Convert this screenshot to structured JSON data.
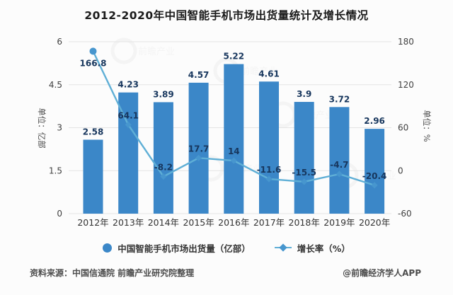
{
  "title": "2012-2020年中国智能手机市场出货量统计及增长情况",
  "chart_data": {
    "type": "bar",
    "subtype": "bar-line-combo",
    "categories": [
      "2012年",
      "2013年",
      "2014年",
      "2015年",
      "2016年",
      "2017年",
      "2018年",
      "2019年",
      "2020年"
    ],
    "series": [
      {
        "name": "中国智能手机市场出货量（亿部）",
        "type": "bar",
        "axis": "left",
        "values": [
          2.58,
          4.23,
          3.89,
          4.57,
          5.22,
          4.61,
          3.9,
          3.72,
          2.96
        ],
        "labels": [
          "2.58",
          "4.23",
          "3.89",
          "4.57",
          "5.22",
          "4.61",
          "3.9",
          "3.72",
          "2.96"
        ]
      },
      {
        "name": "增长率（%）",
        "type": "line",
        "axis": "right",
        "values": [
          166.8,
          64.1,
          -8.2,
          17.7,
          14,
          -11.6,
          -15.5,
          -4.7,
          -20.4
        ],
        "labels": [
          "166.8",
          "64.1",
          "-8.2",
          "17.7",
          "14",
          "-11.6",
          "-15.5",
          "-4.7",
          "-20.4"
        ]
      }
    ],
    "left_axis": {
      "title": "单位：亿部",
      "ticks": [
        6,
        4.5,
        3,
        1.5,
        0
      ],
      "range": [
        0,
        6
      ]
    },
    "right_axis": {
      "title": "单位：%",
      "ticks": [
        180,
        120,
        60,
        0,
        -60
      ],
      "range": [
        -60,
        180
      ]
    },
    "grid": true,
    "legend_position": "bottom"
  },
  "legend": {
    "bar_label": "中国智能手机市场出货量（亿部）",
    "line_label": "增长率（%）"
  },
  "footer": {
    "source": "资料来源：中国信通院 前瞻产业研究院整理",
    "credit": "@前瞻经济学人APP"
  },
  "watermark_text": "前瞻产业",
  "colors": {
    "bar": "#3B87C8",
    "line": "#5FAFD6",
    "marker": "#4796CE",
    "value_label": "#17365D",
    "axis_text": "#404040",
    "gridline": "#e3e3e3"
  }
}
